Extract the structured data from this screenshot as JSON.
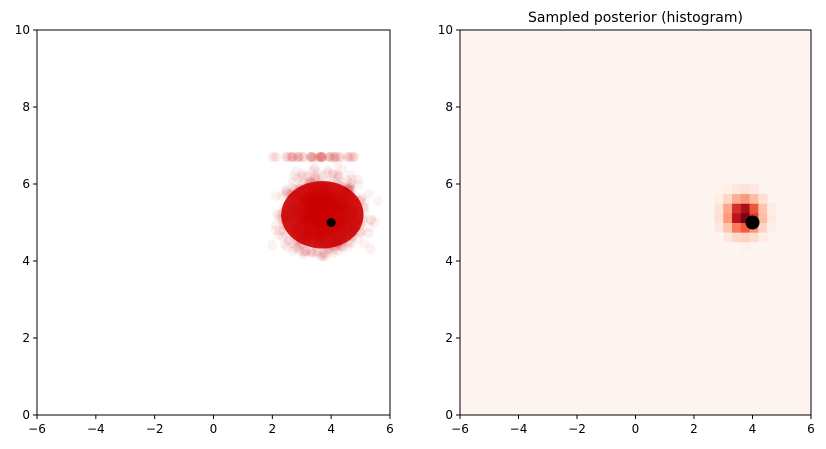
{
  "chart_data": [
    {
      "type": "scatter",
      "title": "",
      "xlabel": "",
      "ylabel": "",
      "xlim": [
        -6,
        6
      ],
      "ylim": [
        0,
        10
      ],
      "xticks": [
        "-6",
        "-4",
        "-2",
        "0",
        "2",
        "4",
        "6"
      ],
      "yticks": [
        "0",
        "2",
        "4",
        "6",
        "8",
        "10"
      ],
      "point_color": "#cc0000",
      "point_alpha": 0.05,
      "samples": {
        "distribution": "posterior samples",
        "center": [
          3.7,
          5.2
        ],
        "spread": [
          0.6,
          0.45
        ],
        "x_range": [
          2.0,
          5.6
        ],
        "y_range": [
          4.1,
          6.75
        ]
      },
      "marker": {
        "x": 4.0,
        "y": 5.0,
        "color": "#000000"
      }
    },
    {
      "type": "heatmap",
      "title": "Sampled posterior (histogram)",
      "xlabel": "",
      "ylabel": "",
      "xlim": [
        -6,
        6
      ],
      "ylim": [
        0,
        10
      ],
      "xticks": [
        "-6",
        "-4",
        "-2",
        "0",
        "2",
        "4",
        "6"
      ],
      "yticks": [
        "0",
        "2",
        "4",
        "6",
        "8",
        "10"
      ],
      "colormap": "Reds",
      "background_color": "#fff5f0",
      "peak": {
        "x": 3.7,
        "y": 5.2
      },
      "marker": {
        "x": 4.0,
        "y": 5.0,
        "color": "#000000"
      }
    }
  ]
}
